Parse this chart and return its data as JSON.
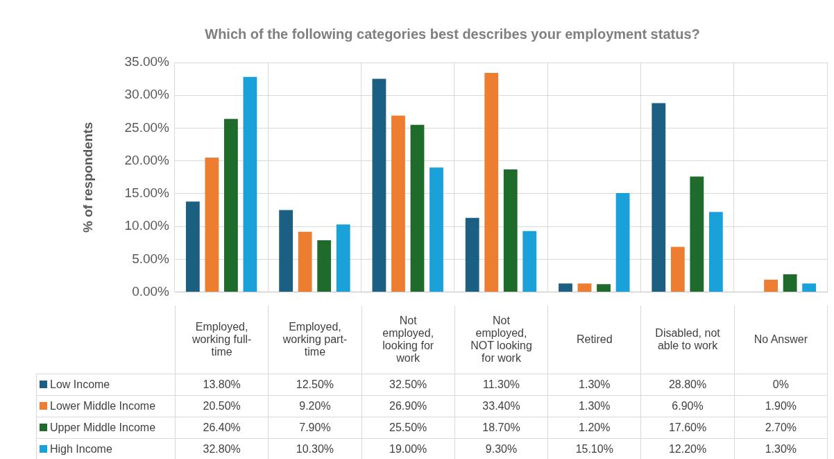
{
  "chart_data": {
    "type": "bar",
    "title": "Which of the following categories best describes your employment status?",
    "ylabel": "% of respondents",
    "categories": [
      "Employed, working full-time",
      "Employed, working part-time",
      "Not employed, looking for work",
      "Not employed, NOT looking for work",
      "Retired",
      "Disabled, not able to work",
      "No Answer"
    ],
    "series": [
      {
        "name": "Low Income",
        "color": "#1b5f82",
        "values": [
          13.8,
          12.5,
          32.5,
          11.3,
          1.3,
          28.8,
          0
        ],
        "value_labels": [
          "13.80%",
          "12.50%",
          "32.50%",
          "11.30%",
          "1.30%",
          "28.80%",
          "0%"
        ]
      },
      {
        "name": "Lower Middle Income",
        "color": "#ed7d31",
        "values": [
          20.5,
          9.2,
          26.9,
          33.4,
          1.3,
          6.9,
          1.9
        ],
        "value_labels": [
          "20.50%",
          "9.20%",
          "26.90%",
          "33.40%",
          "1.30%",
          "6.90%",
          "1.90%"
        ]
      },
      {
        "name": "Upper Middle Income",
        "color": "#1e6b2c",
        "values": [
          26.4,
          7.9,
          25.5,
          18.7,
          1.2,
          17.6,
          2.7
        ],
        "value_labels": [
          "26.40%",
          "7.90%",
          "25.50%",
          "18.70%",
          "1.20%",
          "17.60%",
          "2.70%"
        ]
      },
      {
        "name": "High Income",
        "color": "#1aa1d9",
        "values": [
          32.8,
          10.3,
          19.0,
          9.3,
          15.1,
          12.2,
          1.3
        ],
        "value_labels": [
          "32.80%",
          "10.30%",
          "19.00%",
          "9.30%",
          "15.10%",
          "12.20%",
          "1.30%"
        ]
      }
    ],
    "ylim": [
      0,
      35
    ],
    "yticks": [
      {
        "value": 0,
        "label": "0.00%"
      },
      {
        "value": 5,
        "label": "5.00%"
      },
      {
        "value": 10,
        "label": "10.00%"
      },
      {
        "value": 15,
        "label": "15.00%"
      },
      {
        "value": 20,
        "label": "20.00%"
      },
      {
        "value": 25,
        "label": "25.00%"
      },
      {
        "value": 30,
        "label": "30.00%"
      },
      {
        "value": 35,
        "label": "35.00%"
      }
    ],
    "grid": true,
    "legend": "bottom"
  }
}
